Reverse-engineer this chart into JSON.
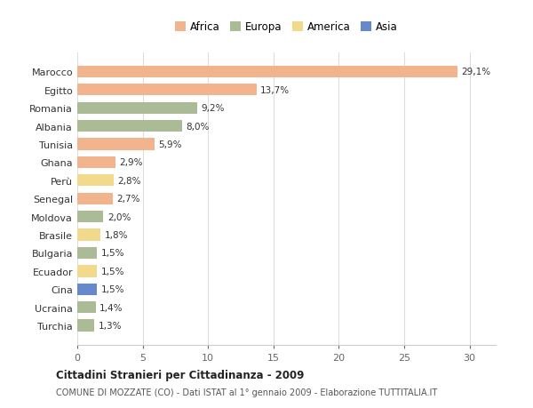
{
  "countries": [
    "Marocco",
    "Egitto",
    "Romania",
    "Albania",
    "Tunisia",
    "Ghana",
    "Perù",
    "Senegal",
    "Moldova",
    "Brasile",
    "Bulgaria",
    "Ecuador",
    "Cina",
    "Ucraina",
    "Turchia"
  ],
  "values": [
    29.1,
    13.7,
    9.2,
    8.0,
    5.9,
    2.9,
    2.8,
    2.7,
    2.0,
    1.8,
    1.5,
    1.5,
    1.5,
    1.4,
    1.3
  ],
  "labels": [
    "29,1%",
    "13,7%",
    "9,2%",
    "8,0%",
    "5,9%",
    "2,9%",
    "2,8%",
    "2,7%",
    "2,0%",
    "1,8%",
    "1,5%",
    "1,5%",
    "1,5%",
    "1,4%",
    "1,3%"
  ],
  "continent": [
    "Africa",
    "Africa",
    "Europa",
    "Europa",
    "Africa",
    "Africa",
    "America",
    "Africa",
    "Europa",
    "America",
    "Europa",
    "America",
    "Asia",
    "Europa",
    "Europa"
  ],
  "colors": {
    "Africa": "#F2B48C",
    "Europa": "#AABB96",
    "America": "#F2D98C",
    "Asia": "#6688CC"
  },
  "xlim": [
    0,
    32
  ],
  "xticks": [
    0,
    5,
    10,
    15,
    20,
    25,
    30
  ],
  "title": "Cittadini Stranieri per Cittadinanza - 2009",
  "subtitle": "COMUNE DI MOZZATE (CO) - Dati ISTAT al 1° gennaio 2009 - Elaborazione TUTTITALIA.IT",
  "background_color": "#ffffff",
  "grid_color": "#dddddd",
  "bar_height": 0.65
}
